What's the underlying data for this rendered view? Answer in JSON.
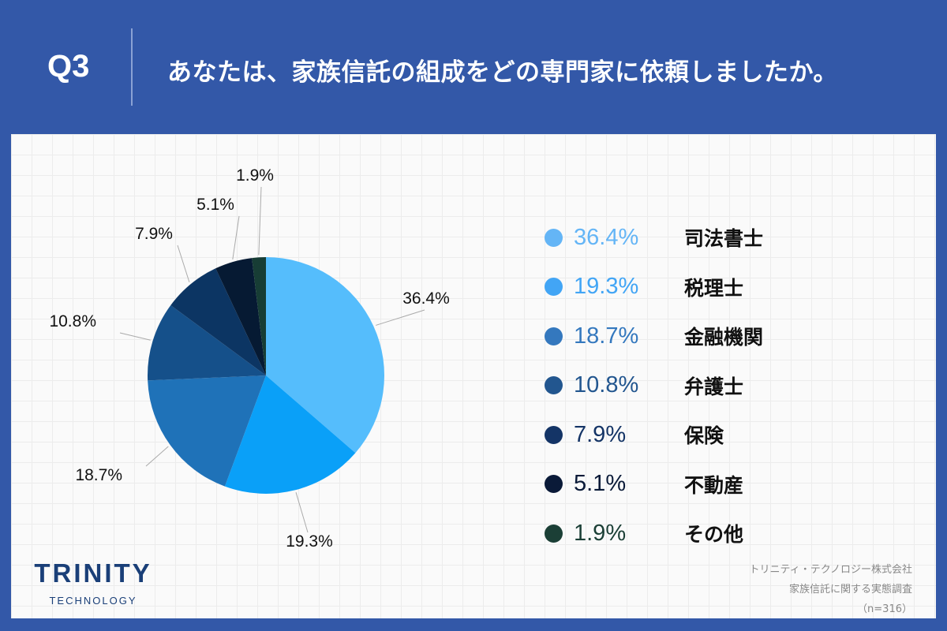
{
  "header": {
    "q_label": "Q3",
    "question": "あなたは、家族信託の組成をどの専門家に依頼しましたか。"
  },
  "chart_data": {
    "type": "pie",
    "start": "top",
    "direction": "clockwise",
    "categories": [
      "司法書士",
      "税理士",
      "金融機関",
      "弁護士",
      "保険",
      "不動産",
      "その他"
    ],
    "values": [
      36.4,
      19.3,
      18.7,
      10.8,
      7.9,
      5.1,
      1.9
    ],
    "data_labels": [
      "36.4%",
      "19.3%",
      "18.7%",
      "10.8%",
      "7.9%",
      "5.1%",
      "1.9%"
    ],
    "slice_colors": [
      "#55bdfc",
      "#0aa0f8",
      "#1f72b8",
      "#15508a",
      "#0c3563",
      "#061a33",
      "#173d35"
    ],
    "legend_colors": [
      "#64b5f6",
      "#42a5f5",
      "#3478be",
      "#22568f",
      "#143466",
      "#0a1a38",
      "#1b3f36"
    ],
    "legend_placement": "right"
  },
  "footer": {
    "logo_main": "TRINITY",
    "logo_sub": "TECHNOLOGY",
    "source_lines": [
      "トリニティ・テクノロジー株式会社",
      "家族信託に関する実態調査",
      "（n=316）"
    ]
  }
}
